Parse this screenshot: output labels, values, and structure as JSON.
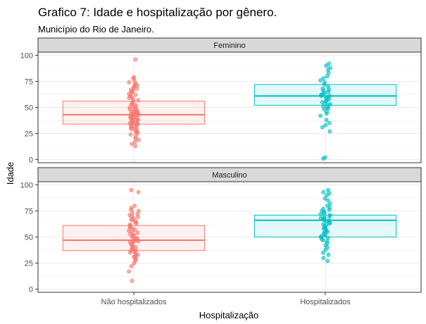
{
  "chart_data": {
    "type": "box",
    "title": "Grafico 7: Idade e hospitalização por gênero.",
    "subtitle": "Município do Rio de Janeiro.",
    "xlabel": "Hospitalização",
    "ylabel": "Idade",
    "categories": [
      "Não hospitalizados",
      "Hospitalizados"
    ],
    "yticks": [
      0,
      25,
      50,
      75,
      100
    ],
    "ylim": [
      -3,
      103
    ],
    "grid": true,
    "legend": "none",
    "colors": {
      "Não hospitalizados": "#F8766D",
      "Hospitalizados": "#00BFC4"
    },
    "panels": [
      {
        "label": "Feminino",
        "boxes": [
          {
            "category": "Não hospitalizados",
            "q1": 34,
            "median": 43,
            "q3": 56,
            "points": [
              13,
              15,
              17,
              19,
              20,
              22,
              24,
              25,
              26,
              27,
              28,
              29,
              30,
              30,
              31,
              32,
              33,
              33,
              34,
              34,
              35,
              35,
              36,
              36,
              37,
              37,
              38,
              38,
              39,
              39,
              40,
              40,
              41,
              41,
              42,
              42,
              43,
              43,
              43,
              44,
              44,
              45,
              45,
              46,
              46,
              47,
              47,
              48,
              49,
              50,
              50,
              51,
              52,
              53,
              54,
              55,
              56,
              57,
              58,
              59,
              60,
              61,
              62,
              63,
              64,
              65,
              66,
              67,
              68,
              69,
              70,
              71,
              72,
              73,
              74,
              76,
              78,
              79,
              96
            ]
          },
          {
            "category": "Hospitalizados",
            "q1": 52,
            "median": 61,
            "q3": 72,
            "points": [
              1,
              2,
              27,
              31,
              33,
              35,
              38,
              42,
              44,
              46,
              48,
              49,
              50,
              51,
              52,
              53,
              54,
              55,
              56,
              57,
              58,
              59,
              60,
              61,
              61,
              62,
              63,
              64,
              65,
              66,
              67,
              68,
              70,
              72,
              74,
              76,
              78,
              80,
              83,
              86,
              88,
              90,
              92
            ]
          }
        ]
      },
      {
        "label": "Masculino",
        "boxes": [
          {
            "category": "Não hospitalizados",
            "q1": 37,
            "median": 47,
            "q3": 61,
            "points": [
              8,
              17,
              22,
              25,
              27,
              29,
              30,
              31,
              32,
              33,
              34,
              35,
              36,
              37,
              37,
              38,
              39,
              40,
              41,
              42,
              43,
              44,
              45,
              46,
              46,
              47,
              47,
              48,
              49,
              50,
              51,
              52,
              53,
              54,
              55,
              56,
              57,
              58,
              59,
              60,
              61,
              62,
              63,
              64,
              65,
              66,
              67,
              68,
              69,
              70,
              71,
              72,
              73,
              75,
              76,
              78,
              80,
              93,
              95
            ]
          },
          {
            "category": "Hospitalizados",
            "q1": 50,
            "median": 66,
            "q3": 71,
            "points": [
              27,
              30,
              33,
              35,
              38,
              40,
              42,
              44,
              46,
              47,
              48,
              49,
              50,
              51,
              52,
              53,
              54,
              55,
              56,
              57,
              58,
              59,
              60,
              61,
              62,
              63,
              64,
              65,
              66,
              66,
              67,
              68,
              68,
              69,
              70,
              71,
              72,
              73,
              74,
              75,
              76,
              77,
              78,
              80,
              82,
              85,
              87,
              90,
              92,
              93,
              95
            ]
          }
        ]
      }
    ]
  }
}
